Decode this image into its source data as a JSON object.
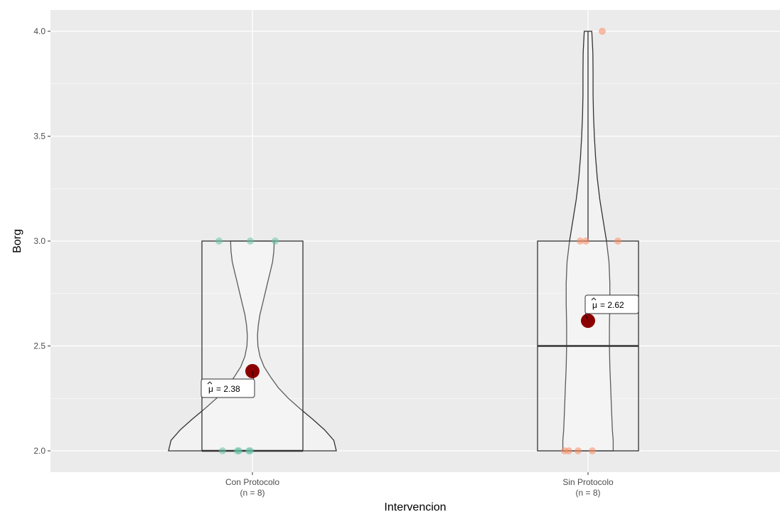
{
  "chart_data": {
    "type": "violin-box",
    "xlabel": "Intervencion",
    "ylabel": "Borg",
    "ylim": [
      1.9,
      4.1
    ],
    "y_ticks": [
      2.0,
      2.5,
      3.0,
      3.5,
      4.0
    ],
    "y_tick_labels": [
      "2.0",
      "2.5",
      "3.0",
      "3.5",
      "4.0"
    ],
    "grid": true,
    "categories": [
      "Con Protocolo",
      "Sin Protocolo"
    ],
    "category_counts": [
      "(n = 8)",
      "(n = 8)"
    ],
    "groups": [
      {
        "name": "Con Protocolo",
        "count_label": "(n = 8)",
        "point_color": "#66c2a5",
        "points": [
          2.0,
          2.0,
          2.0,
          2.0,
          2.0,
          3.0,
          3.0,
          3.0
        ],
        "box": {
          "q1": 2.0,
          "median": 2.0,
          "q3": 3.0,
          "whisker_low": 2.0,
          "whisker_high": 3.0
        },
        "violin_profile": [
          [
            2.0,
            1.0
          ],
          [
            2.05,
            0.97
          ],
          [
            2.1,
            0.86
          ],
          [
            2.15,
            0.72
          ],
          [
            2.2,
            0.57
          ],
          [
            2.25,
            0.43
          ],
          [
            2.3,
            0.31
          ],
          [
            2.35,
            0.22
          ],
          [
            2.4,
            0.14
          ],
          [
            2.45,
            0.09
          ],
          [
            2.5,
            0.065
          ],
          [
            2.55,
            0.06
          ],
          [
            2.6,
            0.07
          ],
          [
            2.65,
            0.09
          ],
          [
            2.7,
            0.12
          ],
          [
            2.75,
            0.15
          ],
          [
            2.8,
            0.18
          ],
          [
            2.85,
            0.21
          ],
          [
            2.9,
            0.24
          ],
          [
            2.95,
            0.255
          ],
          [
            3.0,
            0.26
          ]
        ],
        "mean": 2.38,
        "mean_label": "= 2.38"
      },
      {
        "name": "Sin Protocolo",
        "count_label": "(n = 8)",
        "point_color": "#fc8d62",
        "points": [
          2.0,
          2.0,
          2.0,
          2.0,
          3.0,
          3.0,
          3.0,
          4.0
        ],
        "box": {
          "q1": 2.0,
          "median": 2.5,
          "q3": 3.0,
          "whisker_low": 2.0,
          "whisker_high": 4.0
        },
        "violin_profile": [
          [
            2.0,
            0.3
          ],
          [
            2.05,
            0.3
          ],
          [
            2.1,
            0.29
          ],
          [
            2.2,
            0.28
          ],
          [
            2.3,
            0.27
          ],
          [
            2.4,
            0.26
          ],
          [
            2.5,
            0.255
          ],
          [
            2.6,
            0.255
          ],
          [
            2.7,
            0.26
          ],
          [
            2.8,
            0.26
          ],
          [
            2.9,
            0.25
          ],
          [
            3.0,
            0.22
          ],
          [
            3.1,
            0.18
          ],
          [
            3.2,
            0.14
          ],
          [
            3.3,
            0.11
          ],
          [
            3.4,
            0.09
          ],
          [
            3.5,
            0.075
          ],
          [
            3.6,
            0.065
          ],
          [
            3.7,
            0.06
          ],
          [
            3.8,
            0.06
          ],
          [
            3.9,
            0.058
          ],
          [
            4.0,
            0.045
          ]
        ],
        "mean": 2.62,
        "mean_label": "= 2.62"
      }
    ]
  },
  "colors": {
    "panel_background": "#ebebeb",
    "grid": "#ffffff",
    "mean_point": "#8b0000",
    "violin_fill": "#f2f2f2",
    "outline": "#333333"
  }
}
